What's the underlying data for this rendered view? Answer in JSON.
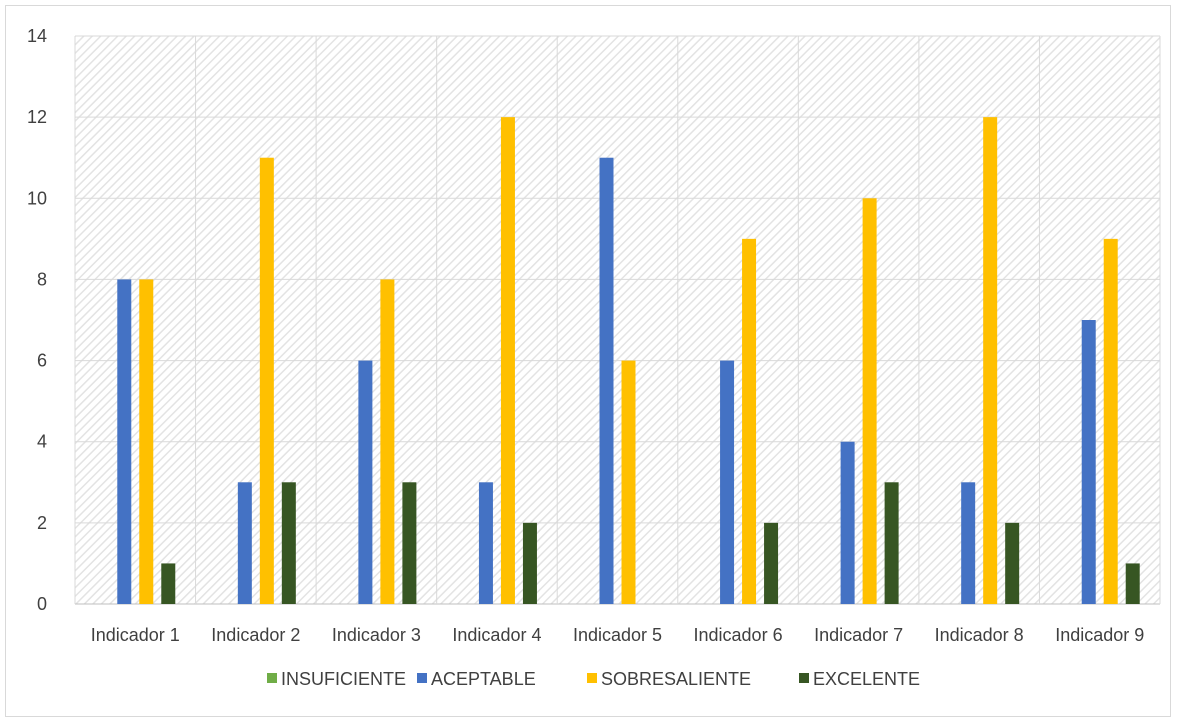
{
  "chart_data": {
    "type": "bar",
    "categories": [
      "Indicador 1",
      "Indicador 2",
      "Indicador 3",
      "Indicador 4",
      "Indicador 5",
      "Indicador 6",
      "Indicador 7",
      "Indicador 8",
      "Indicador 9"
    ],
    "series": [
      {
        "name": "INSUFICIENTE",
        "color": "#70ad47",
        "values": [
          0,
          0,
          0,
          0,
          0,
          0,
          0,
          0,
          0
        ]
      },
      {
        "name": "ACEPTABLE",
        "color": "#4472c4",
        "values": [
          8,
          3,
          6,
          3,
          11,
          6,
          4,
          3,
          7
        ]
      },
      {
        "name": "SOBRESALIENTE",
        "color": "#ffc000",
        "values": [
          8,
          11,
          8,
          12,
          6,
          9,
          10,
          12,
          9
        ]
      },
      {
        "name": "EXCELENTE",
        "color": "#375623",
        "values": [
          1,
          3,
          3,
          2,
          0,
          2,
          3,
          2,
          1
        ]
      }
    ],
    "ylim": [
      0,
      14
    ],
    "yticks": [
      0,
      2,
      4,
      6,
      8,
      10,
      12,
      14
    ],
    "grid": true,
    "legend_position": "bottom"
  }
}
